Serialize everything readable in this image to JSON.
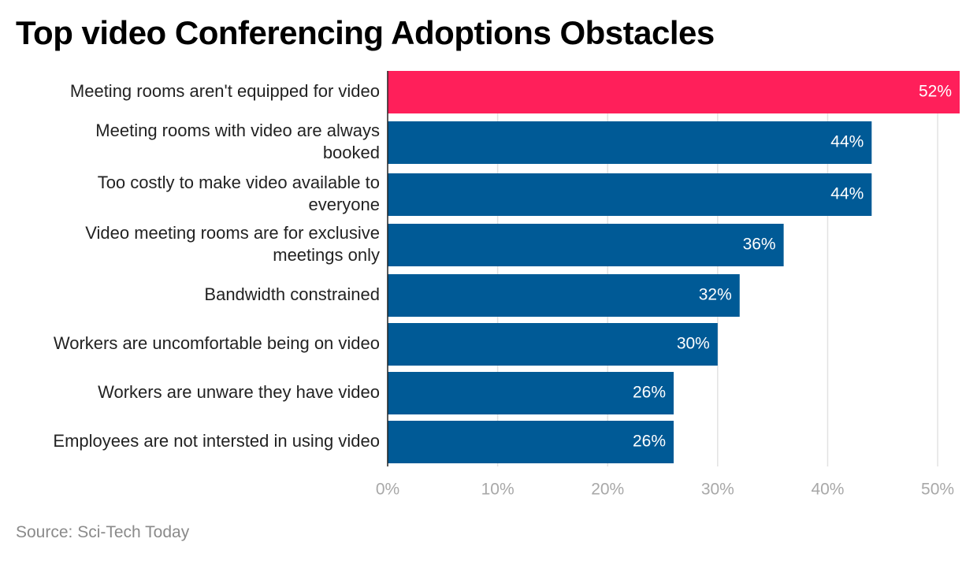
{
  "chart_data": {
    "type": "bar",
    "orientation": "horizontal",
    "title": "Top video Conferencing Adoptions Obstacles",
    "source": "Source: Sci-Tech Today",
    "categories": [
      "Meeting rooms aren't equipped for video",
      "Meeting rooms with video are always booked",
      "Too costly to make video available to everyone",
      "Video meeting rooms are for exclusive meetings only",
      "Bandwidth constrained",
      "Workers are uncomfortable being on video",
      "Workers are unware they have video",
      "Employees are not intersted in using video"
    ],
    "category_lines": [
      [
        "Meeting rooms aren't equipped for video"
      ],
      [
        "Meeting rooms with video are always",
        "booked"
      ],
      [
        "Too costly to make video available to",
        "everyone"
      ],
      [
        "Video meeting rooms are for exclusive",
        "meetings only"
      ],
      [
        "Bandwidth constrained"
      ],
      [
        "Workers are uncomfortable being on video"
      ],
      [
        "Workers are unware they have video"
      ],
      [
        "Employees are not intersted in using video"
      ]
    ],
    "values": [
      52,
      44,
      44,
      36,
      32,
      30,
      26,
      26
    ],
    "value_labels": [
      "52%",
      "44%",
      "44%",
      "36%",
      "32%",
      "30%",
      "26%",
      "26%"
    ],
    "xlim": [
      0,
      52
    ],
    "x_ticks": [
      0,
      10,
      20,
      30,
      40,
      50
    ],
    "x_tick_labels": [
      "0%",
      "10%",
      "20%",
      "30%",
      "40%",
      "50%"
    ],
    "grid": true,
    "colors": {
      "highlight": "#ff1f5a",
      "bar": "#005a96",
      "grid": "#e2e2e2",
      "axis": "#222222"
    }
  }
}
